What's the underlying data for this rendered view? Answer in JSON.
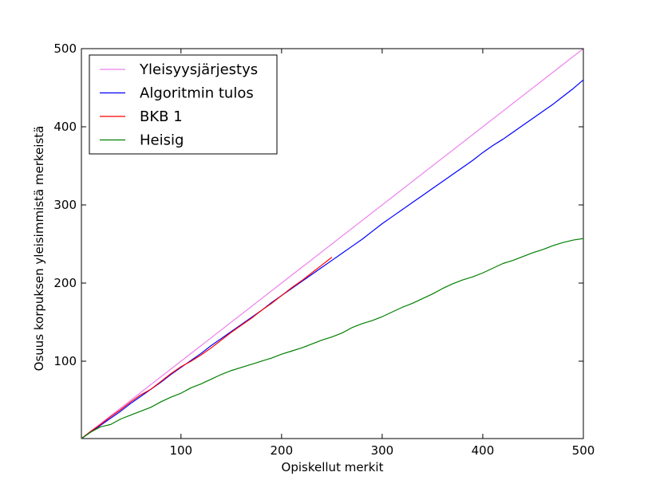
{
  "chart_data": {
    "type": "line",
    "title": "",
    "xlabel": "Opiskellut merkit",
    "ylabel": "Osuus korpuksen yleisimmistä merkeistä",
    "xlim": [
      1,
      500
    ],
    "ylim": [
      1,
      500
    ],
    "xticks": [
      100,
      200,
      300,
      400,
      500
    ],
    "yticks": [
      100,
      200,
      300,
      400,
      500
    ],
    "grid": false,
    "legend_position": "upper-left",
    "series": [
      {
        "name": "Yleisyysjärjestys",
        "color": "#ee82ee",
        "points": [
          [
            1,
            1
          ],
          [
            500,
            500
          ]
        ]
      },
      {
        "name": "Algoritmin tulos",
        "color": "#0000ff",
        "points": [
          [
            1,
            1
          ],
          [
            10,
            9
          ],
          [
            20,
            18
          ],
          [
            30,
            27
          ],
          [
            40,
            36
          ],
          [
            50,
            46
          ],
          [
            60,
            55
          ],
          [
            70,
            64
          ],
          [
            80,
            73
          ],
          [
            90,
            83
          ],
          [
            100,
            92
          ],
          [
            110,
            101
          ],
          [
            120,
            110
          ],
          [
            130,
            120
          ],
          [
            140,
            129
          ],
          [
            150,
            138
          ],
          [
            160,
            147
          ],
          [
            170,
            156
          ],
          [
            180,
            165
          ],
          [
            190,
            175
          ],
          [
            200,
            184
          ],
          [
            210,
            193
          ],
          [
            220,
            202
          ],
          [
            230,
            211
          ],
          [
            240,
            220
          ],
          [
            250,
            229
          ],
          [
            260,
            238
          ],
          [
            270,
            247
          ],
          [
            280,
            256
          ],
          [
            290,
            266
          ],
          [
            300,
            276
          ],
          [
            310,
            285
          ],
          [
            320,
            294
          ],
          [
            330,
            303
          ],
          [
            340,
            312
          ],
          [
            350,
            321
          ],
          [
            360,
            330
          ],
          [
            370,
            339
          ],
          [
            380,
            348
          ],
          [
            390,
            357
          ],
          [
            400,
            367
          ],
          [
            410,
            376
          ],
          [
            420,
            384
          ],
          [
            430,
            393
          ],
          [
            440,
            402
          ],
          [
            450,
            411
          ],
          [
            460,
            420
          ],
          [
            470,
            429
          ],
          [
            480,
            439
          ],
          [
            490,
            449
          ],
          [
            500,
            460
          ]
        ]
      },
      {
        "name": "BKB 1",
        "color": "#ff0000",
        "points": [
          [
            1,
            1
          ],
          [
            10,
            10
          ],
          [
            20,
            19
          ],
          [
            30,
            29
          ],
          [
            40,
            38
          ],
          [
            50,
            48
          ],
          [
            60,
            57
          ],
          [
            70,
            64
          ],
          [
            80,
            74
          ],
          [
            90,
            84
          ],
          [
            100,
            93
          ],
          [
            110,
            100
          ],
          [
            120,
            108
          ],
          [
            130,
            117
          ],
          [
            140,
            127
          ],
          [
            150,
            137
          ],
          [
            160,
            146
          ],
          [
            170,
            155
          ],
          [
            180,
            165
          ],
          [
            190,
            174
          ],
          [
            200,
            184
          ],
          [
            210,
            194
          ],
          [
            220,
            203
          ],
          [
            230,
            213
          ],
          [
            240,
            223
          ],
          [
            250,
            233
          ]
        ]
      },
      {
        "name": "Heisig",
        "color": "#008000",
        "points": [
          [
            1,
            1
          ],
          [
            10,
            9
          ],
          [
            20,
            16
          ],
          [
            30,
            19
          ],
          [
            40,
            26
          ],
          [
            50,
            31
          ],
          [
            60,
            36
          ],
          [
            70,
            41
          ],
          [
            80,
            48
          ],
          [
            90,
            54
          ],
          [
            100,
            59
          ],
          [
            110,
            66
          ],
          [
            120,
            71
          ],
          [
            130,
            77
          ],
          [
            140,
            83
          ],
          [
            150,
            88
          ],
          [
            160,
            92
          ],
          [
            170,
            96
          ],
          [
            180,
            100
          ],
          [
            190,
            104
          ],
          [
            200,
            109
          ],
          [
            210,
            113
          ],
          [
            220,
            117
          ],
          [
            230,
            122
          ],
          [
            240,
            127
          ],
          [
            250,
            131
          ],
          [
            260,
            136
          ],
          [
            270,
            143
          ],
          [
            280,
            148
          ],
          [
            290,
            152
          ],
          [
            300,
            157
          ],
          [
            310,
            163
          ],
          [
            320,
            169
          ],
          [
            330,
            174
          ],
          [
            340,
            180
          ],
          [
            350,
            186
          ],
          [
            360,
            193
          ],
          [
            370,
            199
          ],
          [
            380,
            204
          ],
          [
            390,
            208
          ],
          [
            400,
            213
          ],
          [
            410,
            219
          ],
          [
            420,
            225
          ],
          [
            430,
            229
          ],
          [
            440,
            234
          ],
          [
            450,
            239
          ],
          [
            460,
            243
          ],
          [
            470,
            248
          ],
          [
            480,
            252
          ],
          [
            490,
            255
          ],
          [
            500,
            257
          ]
        ]
      }
    ]
  }
}
